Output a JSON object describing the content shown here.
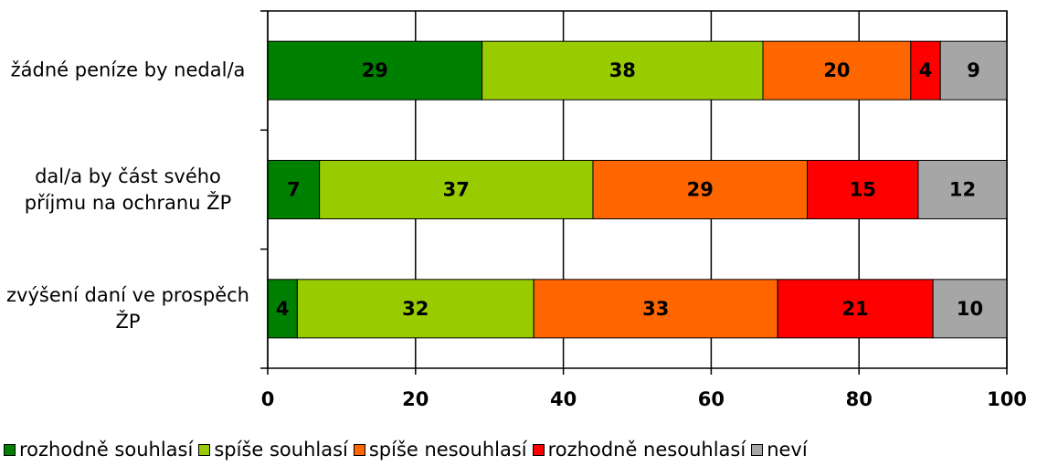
{
  "chart_data": {
    "type": "bar",
    "orientation": "horizontal",
    "stacked": true,
    "categories": [
      "žádné peníze by nedal/a",
      "dal/a by část svého příjmu na ochranu ŽP",
      "zvýšení daní ve prospěch ŽP"
    ],
    "series": [
      {
        "name": "rozhodně souhlasí",
        "color": "#008000",
        "values": [
          29,
          7,
          4
        ]
      },
      {
        "name": "spíše souhlasí",
        "color": "#99cc00",
        "values": [
          38,
          37,
          32
        ]
      },
      {
        "name": "spíše nesouhlasí",
        "color": "#ff6600",
        "values": [
          20,
          29,
          33
        ]
      },
      {
        "name": "rozhodně nesouhlasí",
        "color": "#ff0000",
        "values": [
          4,
          15,
          21
        ]
      },
      {
        "name": "neví",
        "color": "#a6a6a6",
        "values": [
          9,
          12,
          10
        ]
      }
    ],
    "xlim": [
      0,
      100
    ],
    "xticks": [
      0,
      20,
      40,
      60,
      80,
      100
    ],
    "grid": true,
    "legend": "bottom"
  }
}
